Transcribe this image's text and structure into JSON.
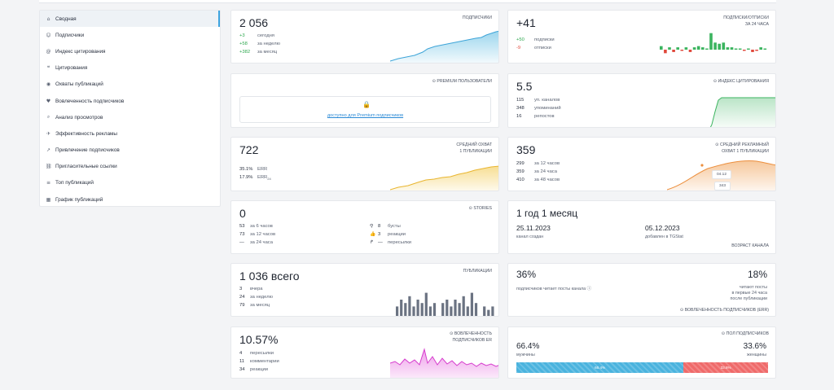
{
  "sidebar": {
    "items": [
      {
        "label": "Сводная",
        "icon": "home-icon",
        "glyph": "⌂"
      },
      {
        "label": "Подписчики",
        "icon": "users-icon",
        "glyph": "☺"
      },
      {
        "label": "Индекс цитирования",
        "icon": "at-icon",
        "glyph": "@"
      },
      {
        "label": "Цитирования",
        "icon": "quote-icon",
        "glyph": "❝"
      },
      {
        "label": "Охваты публикаций",
        "icon": "eye-icon",
        "glyph": "◉"
      },
      {
        "label": "Вовлеченность подписчиков",
        "icon": "heart-icon",
        "glyph": "♥"
      },
      {
        "label": "Анализ просмотров",
        "icon": "search-icon",
        "glyph": "⌕"
      },
      {
        "label": "Эффективность рекламы",
        "icon": "megaphone-icon",
        "glyph": "✈"
      },
      {
        "label": "Привлечение подписчиков",
        "icon": "trend-icon",
        "glyph": "↗"
      },
      {
        "label": "Пригласительные ссылки",
        "icon": "link-icon",
        "glyph": "⛓"
      },
      {
        "label": "Топ публикаций",
        "icon": "top-icon",
        "glyph": "≡"
      },
      {
        "label": "График публикаций",
        "icon": "calendar-icon",
        "glyph": "▦"
      }
    ]
  },
  "subscribers": {
    "value": "2 056",
    "tag": "ПОДПИСЧИКИ",
    "rows": [
      {
        "n": "+3",
        "l": "сегодня"
      },
      {
        "n": "+58",
        "l": "за неделю"
      },
      {
        "n": "+382",
        "l": "за месяц"
      }
    ]
  },
  "subs_unsubs": {
    "value": "+41",
    "tag1": "ПОДПИСКИ/ОТПИСКИ",
    "tag2": "ЗА 24 ЧАСА",
    "rows": [
      {
        "n": "+50",
        "l": "подписки"
      },
      {
        "n": "-9",
        "l": "отписки"
      }
    ],
    "chart_data": {
      "type": "bar",
      "values": [
        3,
        -3,
        2,
        -2,
        2,
        -1,
        2,
        -2,
        2,
        3,
        2,
        1,
        14,
        6,
        5,
        6,
        2,
        2,
        1,
        1,
        -1,
        1,
        -2,
        -1,
        2,
        1
      ]
    }
  },
  "premium": {
    "tag": "PREMIUM ПОЛЬЗОВАТЕЛИ",
    "link": "доступно для Premium подписчиков",
    "tag_icon": "premium-icon",
    "lock_icon": "lock-icon"
  },
  "citation": {
    "value": "5.5",
    "tag": "ИНДЕКС ЦИТИРОВАНИЯ",
    "rows": [
      {
        "n": "115",
        "l": "уп. каналов"
      },
      {
        "n": "348",
        "l": "упоминаний"
      },
      {
        "n": "16",
        "l": "репостов"
      }
    ]
  },
  "avg_reach": {
    "value": "722",
    "tag1": "СРЕДНИЙ ОХВАТ",
    "tag2": "1 ПУБЛИКАЦИИ",
    "err": "35.1%",
    "err_label": "ERR",
    "err24": "17.9%",
    "err24_label": "ERR",
    "err24_sub": "24"
  },
  "ad_reach": {
    "value": "359",
    "tag1": "СРЕДНИЙ РЕКЛАМНЫЙ",
    "tag2": "ОХВАТ 1 ПУБЛИКАЦИИ",
    "rows": [
      {
        "n": "299",
        "l": "за 12 часов"
      },
      {
        "n": "359",
        "l": "за 24 часа"
      },
      {
        "n": "410",
        "l": "за 48 часов"
      }
    ],
    "tip1": "04.12",
    "tip2": "343"
  },
  "stories": {
    "value": "0",
    "tag": "STORIES",
    "left": [
      {
        "n": "53",
        "l": "за 6 часов"
      },
      {
        "n": "73",
        "l": "за 12 часов"
      },
      {
        "n": "—",
        "l": "за 24 часа"
      }
    ],
    "right": [
      {
        "icon": "pin-icon",
        "glyph": "⚲",
        "n": "8",
        "l": "бусты"
      },
      {
        "icon": "thumb-icon",
        "glyph": "👍",
        "n": "3",
        "l": "реакции"
      },
      {
        "icon": "share-icon",
        "glyph": "↱",
        "n": "—",
        "l": "пересылки"
      }
    ]
  },
  "age": {
    "value": "1 год 1 месяц",
    "date1": "25.11.2023",
    "date1_label": "канал создан",
    "date2": "05.12.2023",
    "date2_label": "добавлен в TGStat",
    "tag": "ВОЗРАСТ КАНАЛА"
  },
  "publications": {
    "value": "1 036 всего",
    "tag": "ПУБЛИКАЦИИ",
    "rows": [
      {
        "n": "3",
        "l": "вчера"
      },
      {
        "n": "24",
        "l": "за неделю"
      },
      {
        "n": "79",
        "l": "за месяц"
      }
    ],
    "chart_data": {
      "type": "bar",
      "values": [
        3,
        5,
        4,
        6,
        3,
        5,
        4,
        7,
        3,
        4,
        0,
        4,
        5,
        3,
        5,
        4,
        6,
        3,
        7,
        4,
        0,
        3,
        2,
        3
      ]
    }
  },
  "engagement": {
    "left_value": "36%",
    "right_value": "18%",
    "left_label": "подписчиков читает посты канала",
    "right_label1": "читают посты",
    "right_label2": "в первые 24 часа",
    "right_label3": "после публикации",
    "tag": "ВОВЛЕЧЕННОСТЬ ПОДПИСЧИКОВ (ERR)"
  },
  "er": {
    "value": "10.57%",
    "tag1": "ВОВЛЕЧЕННОСТЬ",
    "tag2": "ПОДПИСЧИКОВ ER",
    "rows": [
      {
        "n": "4",
        "l": "пересылки"
      },
      {
        "n": "11",
        "l": "комментарии"
      },
      {
        "n": "34",
        "l": "реакции"
      }
    ]
  },
  "gender": {
    "tag": "ПОЛ ПОДПИСЧИКОВ",
    "male": "66.4%",
    "male_label": "мужчины",
    "female": "33.6%",
    "female_label": "женщины",
    "male_frac": 0.664,
    "male_bar": "66.4%",
    "female_bar": "33.6%"
  },
  "colors": {
    "blue": "#4ab3de",
    "green": "#3bb45f",
    "orange": "#f0a35a",
    "yellow": "#f2c84b",
    "pink": "#e04fd8",
    "gray_bar": "#6b7382",
    "red": "#e0473a"
  }
}
